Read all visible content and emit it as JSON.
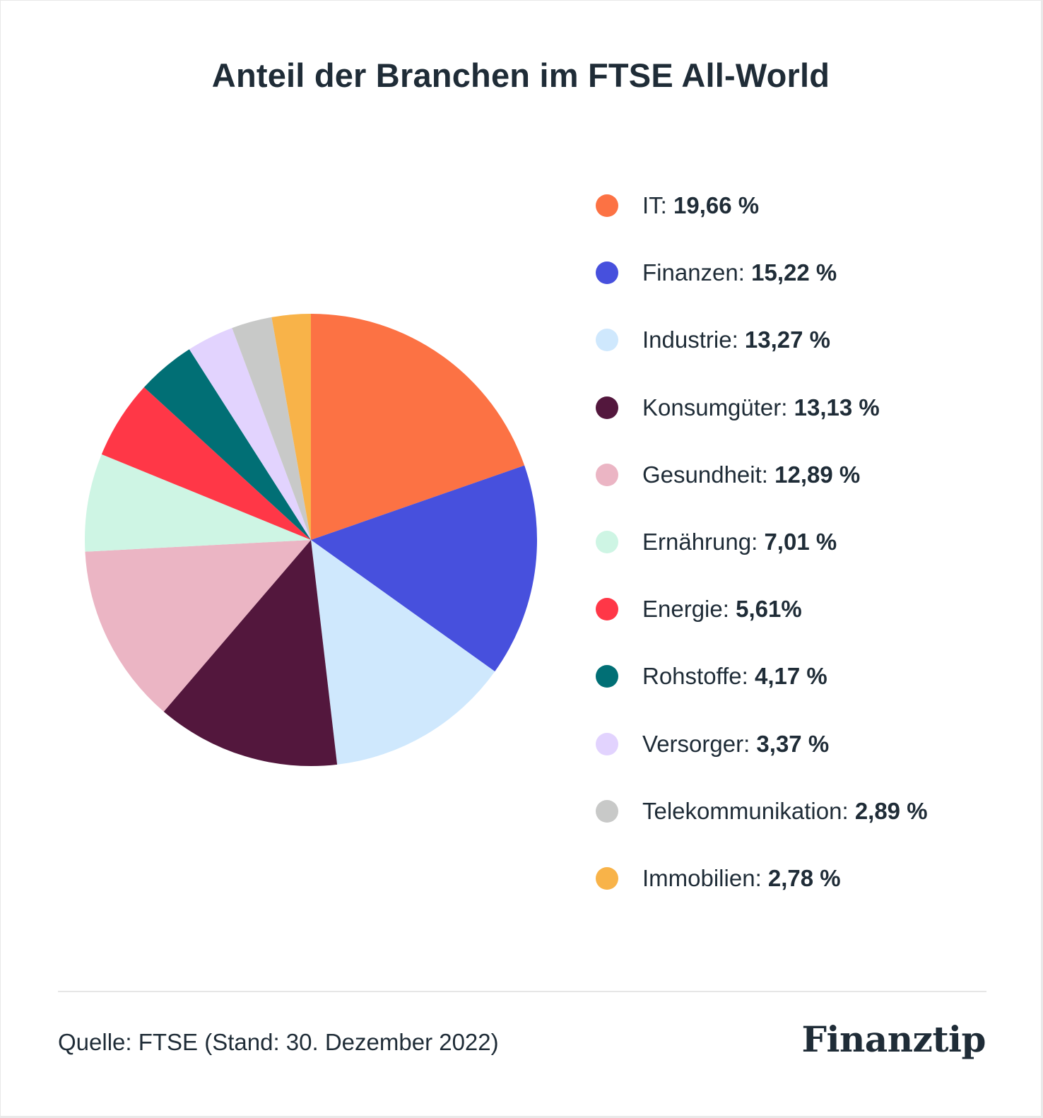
{
  "title": "Anteil der Branchen im FTSE All-World",
  "source": "Quelle: FTSE (Stand: 30. Dezember 2022)",
  "brand": "Finanztip",
  "chart_data": {
    "type": "pie",
    "title": "Anteil der Branchen im FTSE All-World",
    "legend_position": "right",
    "slices": [
      {
        "label": "IT",
        "value": 19.66,
        "display": "19,66 %",
        "color": "#FC7244"
      },
      {
        "label": "Finanzen",
        "value": 15.22,
        "display": "15,22 %",
        "color": "#4750DD"
      },
      {
        "label": "Industrie",
        "value": 13.27,
        "display": "13,27 %",
        "color": "#CFE8FD"
      },
      {
        "label": "Konsumgüter",
        "value": 13.13,
        "display": "13,13 %",
        "color": "#53173D"
      },
      {
        "label": "Gesundheit",
        "value": 12.89,
        "display": "12,89 %",
        "color": "#EBB5C4"
      },
      {
        "label": "Ernährung",
        "value": 7.01,
        "display": "7,01 %",
        "color": "#CEF5E4"
      },
      {
        "label": "Energie",
        "value": 5.61,
        "display": "5,61%",
        "color": "#FF3747"
      },
      {
        "label": "Rohstoffe",
        "value": 4.17,
        "display": "4,17 %",
        "color": "#016F75"
      },
      {
        "label": "Versorger",
        "value": 3.37,
        "display": "3,37 %",
        "color": "#E2D3FE"
      },
      {
        "label": "Telekommunikation",
        "value": 2.89,
        "display": "2,89 %",
        "color": "#C8C9C8"
      },
      {
        "label": "Immobilien",
        "value": 2.78,
        "display": "2,78 %",
        "color": "#F8B349"
      }
    ]
  }
}
